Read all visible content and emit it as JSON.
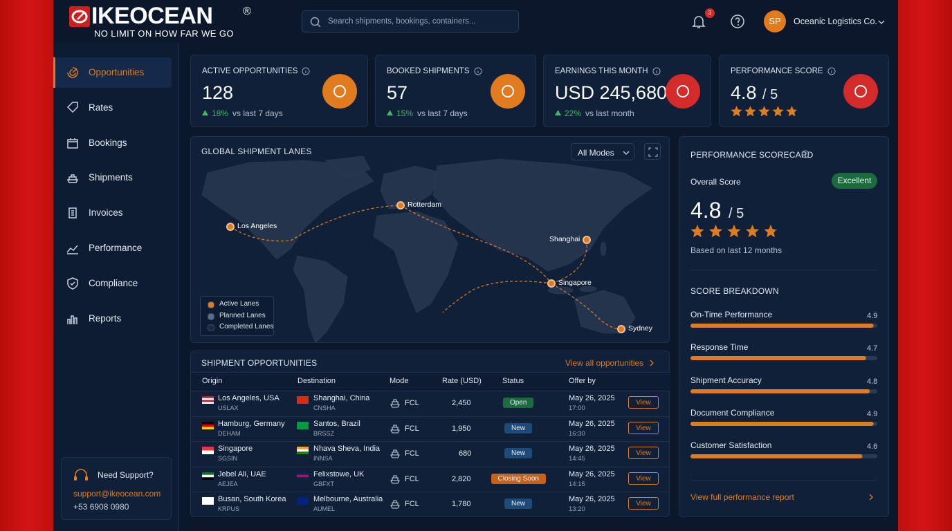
{
  "brand": {
    "name": "IKEOCEAN",
    "mark": "®",
    "tagline": "NO LIMIT ON HOW FAR WE GO"
  },
  "header": {
    "search_placeholder": "Search shipments, bookings, containers...",
    "notification_count": "3",
    "user_initials": "SP",
    "company": "Oceanic Logistics Co."
  },
  "nav": [
    {
      "label": "Opportunities",
      "active": true
    },
    {
      "label": "Rates",
      "active": false
    },
    {
      "label": "Bookings",
      "active": false
    },
    {
      "label": "Shipments",
      "active": false
    },
    {
      "label": "Invoices",
      "active": false
    },
    {
      "label": "Performance",
      "active": false
    },
    {
      "label": "Compliance",
      "active": false
    },
    {
      "label": "Reports",
      "active": false
    }
  ],
  "support": {
    "title": "Need Support?",
    "email": "support@ikeocean.com",
    "phone": "+53 6908 0980"
  },
  "kpis": [
    {
      "label": "ACTIVE OPPORTUNITIES",
      "value": "128",
      "change": "18%",
      "note": "vs last 7 days",
      "color": "#e07b1f"
    },
    {
      "label": "BOOKED SHIPMENTS",
      "value": "57",
      "change": "15%",
      "note": "vs last 7 days",
      "color": "#e07b1f"
    },
    {
      "label": "EARNINGS THIS MONTH",
      "value": "USD 245,680",
      "change": "22%",
      "note": "vs last month",
      "color": "#d32a2a"
    },
    {
      "label": "PERFORMANCE SCORE",
      "value": 4.8,
      "out_of": {
        "value": 5,
        "label": "/ 5"
      },
      "color": "#d32a2a"
    }
  ],
  "map": {
    "title": "GLOBAL SHIPMENT LANES",
    "filter": "All Modes",
    "ports": [
      "Los Angeles",
      "Rotterdam",
      "Shanghai",
      "Singapore",
      "Sydney"
    ],
    "legend": [
      "Active Lanes",
      "Planned Lanes",
      "Completed Lanes"
    ]
  },
  "table": {
    "title": "SHIPMENT OPPORTUNITIES",
    "link": "View all opportunities",
    "columns": [
      "Origin",
      "Destination",
      "Mode",
      "Rate (USD)",
      "Status",
      "Offer by"
    ],
    "action": "View",
    "rows": [
      {
        "origin": "Los Angeles, USA",
        "origin_code": "USLAX",
        "destination": "Shanghai, China",
        "destination_code": "CNSHA",
        "mode": "FCL",
        "rate": "2,450",
        "status": "Open",
        "status_color": "#1c6b3f",
        "date": "May 26, 2025",
        "time": "17:00"
      },
      {
        "origin": "Hamburg, Germany",
        "origin_code": "DEHAM",
        "destination": "Santos, Brazil",
        "destination_code": "BRSSZ",
        "mode": "FCL",
        "rate": "1,950",
        "status": "New",
        "status_color": "#1d4a78",
        "date": "May 26, 2025",
        "time": "16:30"
      },
      {
        "origin": "Singapore",
        "origin_code": "SGSIN",
        "destination": "Nhava Sheva, India",
        "destination_code": "INNSA",
        "mode": "FCL",
        "rate": "680",
        "status": "New",
        "status_color": "#1d4a78",
        "date": "May 26, 2025",
        "time": "14:45"
      },
      {
        "origin": "Jebel Ali, UAE",
        "origin_code": "AEJEA",
        "destination": "Felixstowe, UK",
        "destination_code": "GBFXT",
        "mode": "FCL",
        "rate": "2,820",
        "status": "Closing Soon",
        "status_color": "#c8621a",
        "date": "May 26, 2025",
        "time": "14:15"
      },
      {
        "origin": "Busan, South Korea",
        "origin_code": "KRPUS",
        "destination": "Melbourne, Australia",
        "destination_code": "AUMEL",
        "mode": "FCL",
        "rate": "1,780",
        "status": "New",
        "status_color": "#1d4a78",
        "date": "May 26, 2025",
        "time": "13:20"
      }
    ]
  },
  "scorecard": {
    "title": "PERFORMANCE SCORECARD",
    "overall_label": "Overall Score",
    "badge": "Excellent",
    "score": 4.8,
    "out_of": {
      "value": 5,
      "label": "/ 5"
    },
    "period": "Based on last 12 months",
    "breakdown_title": "SCORE BREAKDOWN",
    "breakdown": [
      {
        "name": "On-Time Performance",
        "value": 4.9
      },
      {
        "name": "Response Time",
        "value": 4.7
      },
      {
        "name": "Shipment Accuracy",
        "value": 4.8
      },
      {
        "name": "Document Compliance",
        "value": 4.9
      },
      {
        "name": "Customer Satisfaction",
        "value": 4.6
      }
    ],
    "link": "View full performance report"
  }
}
